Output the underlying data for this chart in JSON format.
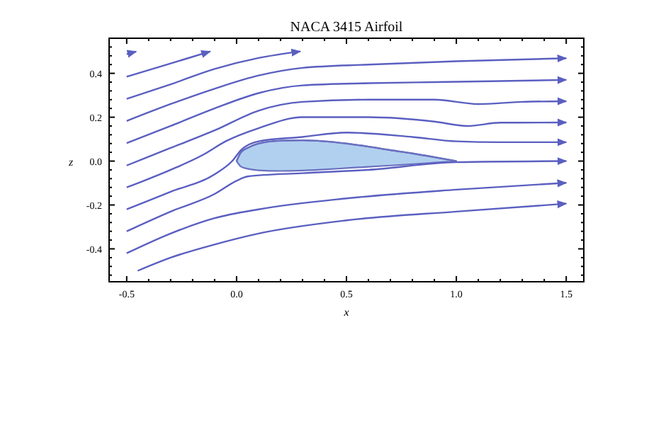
{
  "chart_data": {
    "type": "line",
    "title": "NACA 3415 Airfoil",
    "xlabel": "x",
    "ylabel": "z",
    "xlim": [
      -0.58,
      1.58
    ],
    "ylim": [
      -0.55,
      0.56
    ],
    "xticks": [
      -0.5,
      {
        "value": 0,
        "label": "0.0"
      },
      0.5,
      {
        "value": 1,
        "label": "1.0"
      },
      1.5
    ],
    "yticks": [
      -0.4,
      -0.2,
      {
        "value": 0,
        "label": "0.0"
      },
      0.2,
      0.4
    ],
    "grid": false,
    "series": [
      {
        "color": "#6a70c0",
        "x": [
          0,
          0.02,
          0.05,
          0.1,
          0.2,
          0.3,
          0.4,
          0.5,
          0.6,
          0.7,
          0.8,
          0.9,
          1.0
        ],
        "values": [
          0,
          0.04,
          0.06,
          0.08,
          0.093,
          0.095,
          0.09,
          0.08,
          0.066,
          0.05,
          0.035,
          0.018,
          0
        ],
        "upper": [
          0,
          0.04,
          0.06,
          0.08,
          0.093,
          0.095,
          0.09,
          0.08,
          0.066,
          0.05,
          0.035,
          0.018,
          0
        ],
        "lower": [
          0,
          -0.025,
          -0.035,
          -0.042,
          -0.045,
          -0.043,
          -0.038,
          -0.032,
          -0.026,
          -0.02,
          -0.014,
          -0.007,
          0
        ]
      },
      {
        "color": "#5a5fc0",
        "x": [
          -0.5,
          -0.457
        ],
        "values": [
          0.488,
          0.499
        ]
      },
      {
        "color": "#5a5fc0",
        "x": [
          -0.5,
          -0.3,
          -0.12
        ],
        "values": [
          0.385,
          0.445,
          0.5
        ]
      },
      {
        "color": "#5a5fc0",
        "x": [
          -0.5,
          -0.3,
          -0.1,
          0.1,
          0.29
        ],
        "values": [
          0.284,
          0.35,
          0.42,
          0.47,
          0.5
        ]
      },
      {
        "color": "#5a5fc0",
        "x": [
          -0.5,
          -0.3,
          -0.1,
          0.1,
          0.3,
          0.6,
          1.0,
          1.5
        ],
        "values": [
          0.183,
          0.26,
          0.33,
          0.39,
          0.425,
          0.44,
          0.455,
          0.469
        ]
      },
      {
        "color": "#5a5fc0",
        "x": [
          -0.5,
          -0.3,
          -0.1,
          0.1,
          0.3,
          0.6,
          0.9,
          1.2,
          1.5
        ],
        "values": [
          0.082,
          0.16,
          0.24,
          0.31,
          0.345,
          0.355,
          0.36,
          0.365,
          0.37
        ]
      },
      {
        "color": "#5a5fc0",
        "x": [
          -0.5,
          -0.3,
          -0.1,
          0.1,
          0.3,
          0.6,
          0.9,
          1.1,
          1.3,
          1.5
        ],
        "values": [
          -0.02,
          0.06,
          0.14,
          0.23,
          0.27,
          0.28,
          0.28,
          0.26,
          0.27,
          0.273
        ]
      },
      {
        "color": "#5a5fc0",
        "x": [
          -0.5,
          -0.3,
          -0.15,
          -0.05,
          0.1,
          0.3,
          0.6,
          0.9,
          1.05,
          1.2,
          1.5
        ],
        "values": [
          -0.12,
          -0.04,
          0.03,
          0.09,
          0.15,
          0.2,
          0.2,
          0.18,
          0.16,
          0.175,
          0.176
        ]
      },
      {
        "color": "#5a5fc0",
        "x": [
          -0.5,
          -0.3,
          -0.1,
          -0.02,
          0.02,
          0.1,
          0.3,
          0.5,
          0.8,
          1.0,
          1.2,
          1.5
        ],
        "values": [
          -0.22,
          -0.14,
          -0.06,
          0.0,
          0.05,
          0.09,
          0.11,
          0.13,
          0.11,
          0.09,
          0.086,
          0.086
        ]
      },
      {
        "color": "#5a5fc0",
        "x": [
          -0.5,
          -0.3,
          -0.1,
          0.0,
          0.05,
          0.3,
          0.6,
          1.0,
          1.5
        ],
        "values": [
          -0.32,
          -0.23,
          -0.15,
          -0.09,
          -0.07,
          -0.055,
          -0.04,
          -0.005,
          0.0
        ]
      },
      {
        "color": "#5a5fc0",
        "x": [
          -0.5,
          -0.3,
          -0.1,
          0.1,
          0.5,
          1.0,
          1.5
        ],
        "values": [
          -0.42,
          -0.33,
          -0.26,
          -0.22,
          -0.17,
          -0.13,
          -0.099
        ]
      },
      {
        "color": "#5a5fc0",
        "x": [
          -0.45,
          -0.3,
          -0.1,
          0.1,
          0.5,
          1.0,
          1.5
        ],
        "values": [
          -0.5,
          -0.44,
          -0.38,
          -0.33,
          -0.27,
          -0.23,
          -0.194
        ]
      }
    ]
  }
}
